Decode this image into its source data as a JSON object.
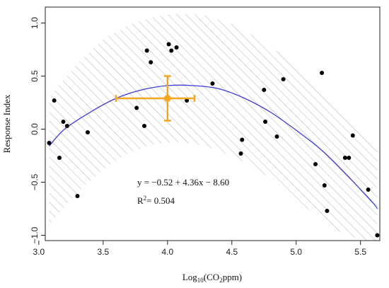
{
  "chart_data": {
    "type": "scatter",
    "xlabel_main": "Log",
    "xlabel_sub": "10",
    "xlabel_rest": "(CO",
    "xlabel_sub2": "2",
    "xlabel_end": "ppm)",
    "ylabel": "Response Index",
    "xlim": [
      3.05,
      5.65
    ],
    "ylim": [
      -1.05,
      1.15
    ],
    "xticks": [
      3.0,
      3.5,
      4.0,
      4.5,
      5.0,
      5.5
    ],
    "xtick_labels": [
      "3.0",
      "3.5",
      "4.0",
      "4.5",
      "5.0",
      "5.5"
    ],
    "yticks": [
      -1.0,
      -0.5,
      0.0,
      0.5,
      1.0
    ],
    "ytick_labels": [
      "−1.0",
      "−0.5",
      "0.0",
      "0.5",
      "1.0"
    ],
    "grid": false,
    "points": [
      {
        "x": 3.08,
        "y": -0.13
      },
      {
        "x": 3.12,
        "y": 0.27
      },
      {
        "x": 3.16,
        "y": -0.27
      },
      {
        "x": 3.19,
        "y": 0.07
      },
      {
        "x": 3.22,
        "y": 0.03
      },
      {
        "x": 3.3,
        "y": -0.63
      },
      {
        "x": 3.38,
        "y": -0.03
      },
      {
        "x": 3.76,
        "y": 0.2
      },
      {
        "x": 3.82,
        "y": 0.03
      },
      {
        "x": 3.84,
        "y": 0.74
      },
      {
        "x": 3.87,
        "y": 0.63
      },
      {
        "x": 4.01,
        "y": 0.8
      },
      {
        "x": 4.03,
        "y": 0.74
      },
      {
        "x": 4.07,
        "y": 0.77
      },
      {
        "x": 4.15,
        "y": 0.27
      },
      {
        "x": 4.35,
        "y": 0.43
      },
      {
        "x": 4.57,
        "y": -0.23
      },
      {
        "x": 4.58,
        "y": -0.1
      },
      {
        "x": 4.75,
        "y": 0.37
      },
      {
        "x": 4.76,
        "y": 0.07
      },
      {
        "x": 4.85,
        "y": -0.07
      },
      {
        "x": 4.9,
        "y": 0.47
      },
      {
        "x": 5.15,
        "y": -0.33
      },
      {
        "x": 5.2,
        "y": 0.53
      },
      {
        "x": 5.22,
        "y": -0.53
      },
      {
        "x": 5.24,
        "y": -0.77
      },
      {
        "x": 5.38,
        "y": -0.27
      },
      {
        "x": 5.41,
        "y": -0.27
      },
      {
        "x": 5.44,
        "y": -0.06
      },
      {
        "x": 5.56,
        "y": -0.57
      },
      {
        "x": 5.63,
        "y": -1.0
      }
    ],
    "fit_curve": {
      "color": "#3b3bdc",
      "x": [
        3.08,
        3.2,
        3.4,
        3.6,
        3.8,
        4.0,
        4.2,
        4.4,
        4.6,
        4.8,
        5.0,
        5.2,
        5.4,
        5.6,
        5.63
      ],
      "y": [
        -0.16,
        0.0,
        0.16,
        0.29,
        0.37,
        0.41,
        0.41,
        0.38,
        0.29,
        0.16,
        -0.01,
        -0.2,
        -0.44,
        -0.7,
        -0.75
      ]
    },
    "band": {
      "fill": "#bbbbbb",
      "upper_x": [
        3.08,
        3.3,
        3.5,
        3.7,
        3.9,
        4.1,
        4.3,
        4.5,
        4.7,
        4.9,
        5.1,
        5.3,
        5.5,
        5.63
      ],
      "upper_y": [
        0.3,
        0.62,
        0.85,
        0.98,
        1.06,
        1.09,
        1.07,
        0.99,
        0.86,
        0.69,
        0.48,
        0.24,
        -0.02,
        -0.2
      ],
      "lower_x": [
        3.08,
        3.3,
        3.5,
        3.7,
        3.9,
        4.1,
        4.3,
        4.5,
        4.7,
        4.9,
        5.1,
        5.3,
        5.5,
        5.63
      ],
      "lower_y": [
        -0.9,
        -0.6,
        -0.38,
        -0.22,
        -0.14,
        -0.12,
        -0.16,
        -0.25,
        -0.38,
        -0.56,
        -0.76,
        -0.95,
        -1.04,
        -1.06
      ]
    },
    "centroid": {
      "color": "#f5a623",
      "x": 4.0,
      "y": 0.29,
      "x_err": [
        3.6,
        4.21
      ],
      "y_err": [
        0.08,
        0.5
      ]
    },
    "annotation_eq": "y = −0.52 + 4.36x − 8.60",
    "annotation_r2_main": "R",
    "annotation_r2_sup": "2",
    "annotation_r2_rest": "= 0.504",
    "point_color": "#000000"
  }
}
